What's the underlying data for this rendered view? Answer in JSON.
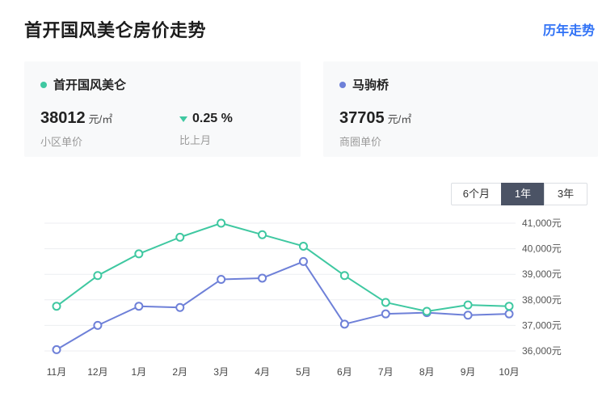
{
  "header": {
    "title": "首开国风美仑房价走势",
    "history_link": "历年走势"
  },
  "cards": {
    "community": {
      "name": "首开国风美仑",
      "dot_color": "#3fc8a1",
      "price": "38012",
      "unit": "元/㎡",
      "price_label": "小区单价",
      "change_direction": "down",
      "change": "0.25 %",
      "change_label": "比上月"
    },
    "district": {
      "name": "马驹桥",
      "dot_color": "#6e80d8",
      "price": "37705",
      "unit": "元/㎡",
      "price_label": "商圈单价"
    }
  },
  "range_buttons": [
    {
      "label": "6个月",
      "selected": false
    },
    {
      "label": "1年",
      "selected": true
    },
    {
      "label": "3年",
      "selected": false
    }
  ],
  "chart_data": {
    "type": "line",
    "title": "首开国风美仑房价走势",
    "x": [
      "11月",
      "12月",
      "1月",
      "2月",
      "3月",
      "4月",
      "5月",
      "6月",
      "7月",
      "8月",
      "9月",
      "10月"
    ],
    "series": [
      {
        "name": "首开国风美仑",
        "color": "#3fc8a1",
        "values": [
          37750,
          38950,
          39800,
          40450,
          41000,
          40550,
          40100,
          38950,
          37900,
          37550,
          37800,
          37750
        ]
      },
      {
        "name": "马驹桥",
        "color": "#6e80d8",
        "values": [
          36050,
          37000,
          37750,
          37700,
          38800,
          38850,
          39500,
          37050,
          37450,
          37500,
          37400,
          37450
        ]
      }
    ],
    "ylim": [
      36000,
      41000
    ],
    "yticks": [
      36000,
      37000,
      38000,
      39000,
      40000,
      41000
    ],
    "ytick_suffix": "元",
    "grid": true,
    "legend_position": "none",
    "ytick_side": "right"
  }
}
